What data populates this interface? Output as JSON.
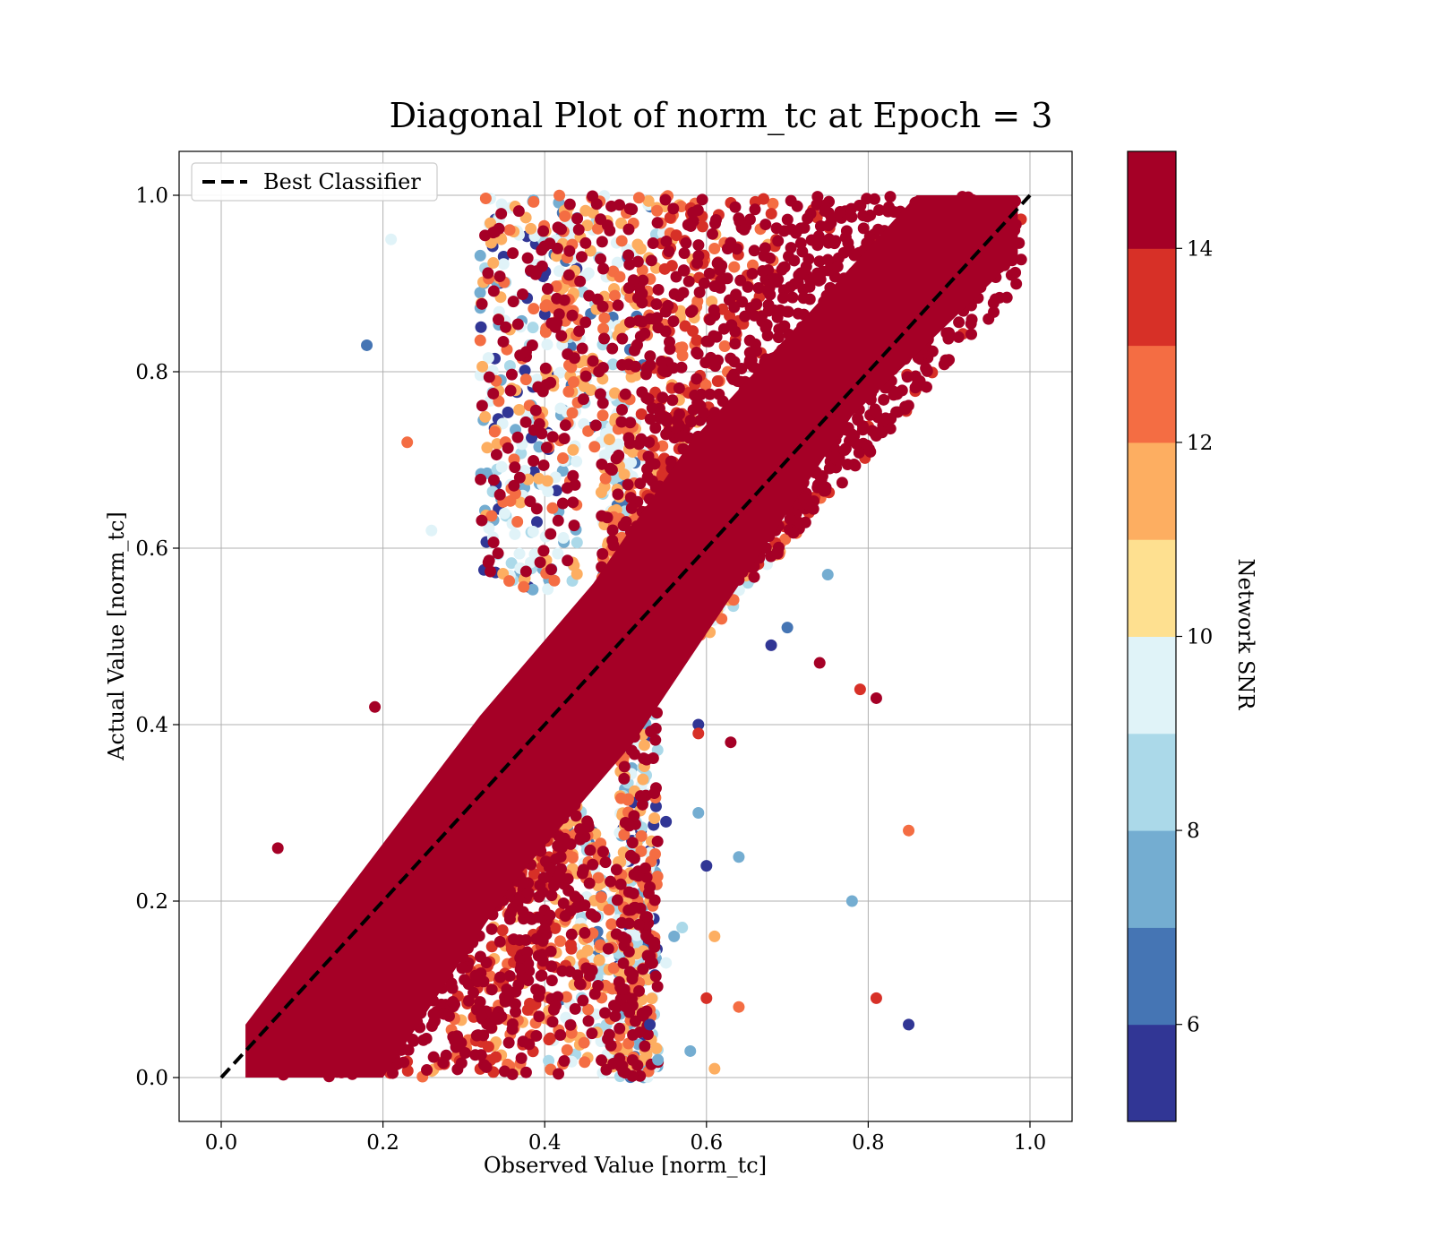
{
  "chart_data": {
    "type": "scatter",
    "title": "Diagonal Plot of norm_tc at Epoch = 3",
    "xlabel": "Observed Value [norm_tc]",
    "ylabel": "Actual Value [norm_tc]",
    "xlim": [
      -0.05,
      1.05
    ],
    "ylim": [
      -0.05,
      1.05
    ],
    "x_ticks": [
      "0.0",
      "0.2",
      "0.4",
      "0.6",
      "0.8",
      "1.0"
    ],
    "y_ticks": [
      "0.0",
      "0.2",
      "0.4",
      "0.6",
      "0.8",
      "1.0"
    ],
    "grid": true,
    "legend": {
      "placement": "top-left",
      "entries": [
        "Best Classifier"
      ]
    },
    "reference_line": {
      "name": "Best Classifier",
      "x": [
        0.0,
        1.0
      ],
      "y": [
        0.0,
        1.0
      ],
      "style": "dashed",
      "color": "#000000"
    },
    "colorbar": {
      "label": "Network SNR",
      "range": [
        5,
        15
      ],
      "ticks": [
        "6",
        "8",
        "10",
        "12",
        "14"
      ],
      "colors": [
        "#313695",
        "#4575b4",
        "#74add1",
        "#abd9e9",
        "#e0f3f8",
        "#fee090",
        "#fdae61",
        "#f46d43",
        "#d73027",
        "#a50026"
      ]
    },
    "points_note_colors": {
      "high_snr": "#a50026"
    },
    "outliers": [
      {
        "x": 0.18,
        "y": 0.83,
        "snr": 6
      },
      {
        "x": 0.21,
        "y": 0.95,
        "snr": 9
      },
      {
        "x": 0.23,
        "y": 0.72,
        "snr": 12
      },
      {
        "x": 0.26,
        "y": 0.62,
        "snr": 9
      },
      {
        "x": 0.07,
        "y": 0.26,
        "snr": 14
      },
      {
        "x": 0.19,
        "y": 0.42,
        "snr": 14
      },
      {
        "x": 0.75,
        "y": 0.57,
        "snr": 7
      },
      {
        "x": 0.68,
        "y": 0.49,
        "snr": 5
      },
      {
        "x": 0.7,
        "y": 0.51,
        "snr": 6
      },
      {
        "x": 0.74,
        "y": 0.47,
        "snr": 14
      },
      {
        "x": 0.79,
        "y": 0.44,
        "snr": 13
      },
      {
        "x": 0.81,
        "y": 0.43,
        "snr": 14
      },
      {
        "x": 0.59,
        "y": 0.4,
        "snr": 5
      },
      {
        "x": 0.59,
        "y": 0.39,
        "snr": 13
      },
      {
        "x": 0.63,
        "y": 0.38,
        "snr": 14
      },
      {
        "x": 0.85,
        "y": 0.28,
        "snr": 12
      },
      {
        "x": 0.59,
        "y": 0.3,
        "snr": 7
      },
      {
        "x": 0.55,
        "y": 0.29,
        "snr": 5
      },
      {
        "x": 0.6,
        "y": 0.24,
        "snr": 5
      },
      {
        "x": 0.64,
        "y": 0.25,
        "snr": 7
      },
      {
        "x": 0.78,
        "y": 0.2,
        "snr": 7
      },
      {
        "x": 0.56,
        "y": 0.16,
        "snr": 7
      },
      {
        "x": 0.57,
        "y": 0.17,
        "snr": 8
      },
      {
        "x": 0.61,
        "y": 0.16,
        "snr": 11
      },
      {
        "x": 0.55,
        "y": 0.13,
        "snr": 9
      },
      {
        "x": 0.6,
        "y": 0.09,
        "snr": 13
      },
      {
        "x": 0.64,
        "y": 0.08,
        "snr": 12
      },
      {
        "x": 0.81,
        "y": 0.09,
        "snr": 13
      },
      {
        "x": 0.85,
        "y": 0.06,
        "snr": 5
      },
      {
        "x": 0.58,
        "y": 0.03,
        "snr": 7
      },
      {
        "x": 0.61,
        "y": 0.01,
        "snr": 11
      },
      {
        "x": 0.53,
        "y": 0.06,
        "snr": 5
      },
      {
        "x": 0.54,
        "y": 0.02,
        "snr": 7
      }
    ]
  }
}
